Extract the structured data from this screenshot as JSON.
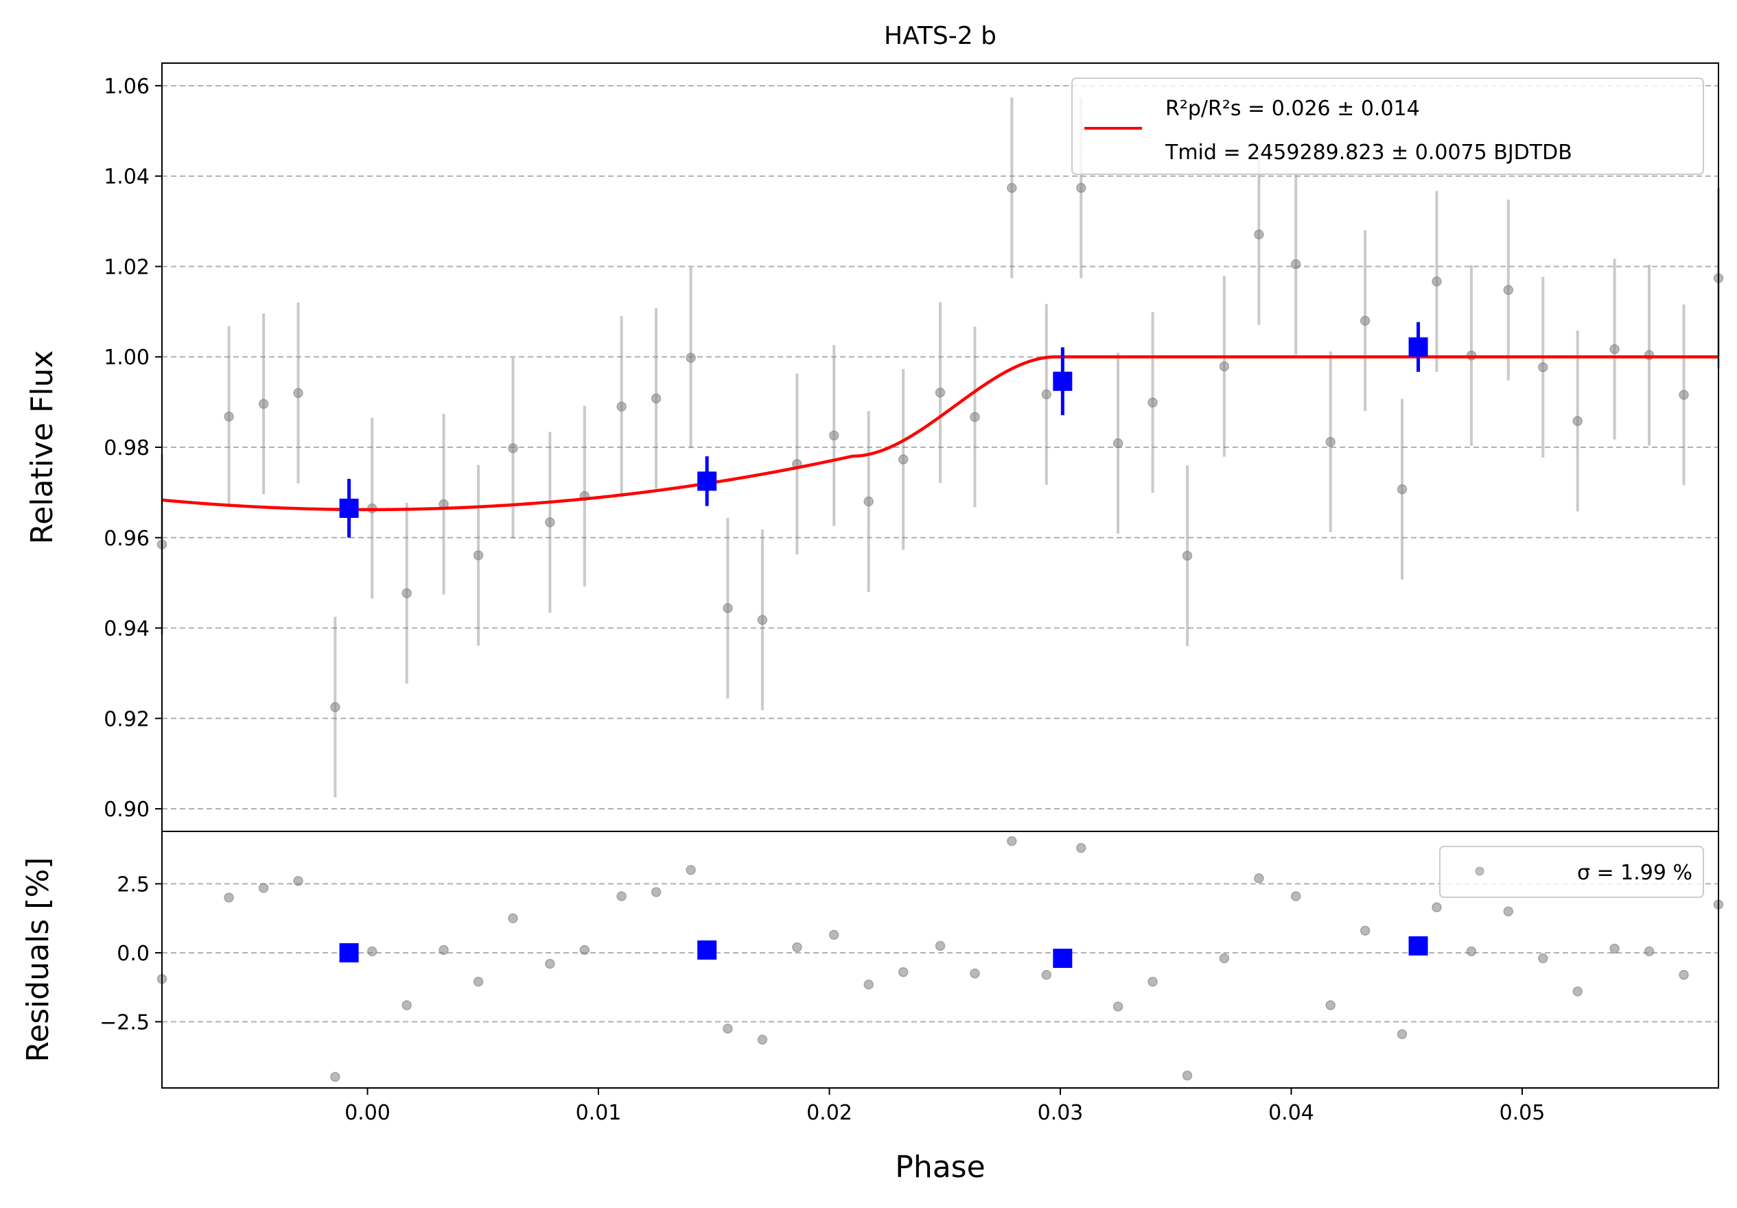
{
  "chart_data": {
    "type": "scatter",
    "title": "HATS-2 b",
    "xlabel": "Phase",
    "xlim": [
      -0.0089,
      0.0585
    ],
    "xticks": [
      0.0,
      0.01,
      0.02,
      0.03,
      0.04,
      0.05
    ],
    "xtick_labels": [
      "0.00",
      "0.01",
      "0.02",
      "0.03",
      "0.04",
      "0.05"
    ],
    "top_panel": {
      "ylabel": "Relative Flux",
      "ylim": [
        0.895,
        1.065
      ],
      "yticks": [
        0.9,
        0.92,
        0.94,
        0.96,
        0.98,
        1.0,
        1.02,
        1.04,
        1.06
      ],
      "ytick_labels": [
        "0.90",
        "0.92",
        "0.94",
        "0.96",
        "0.98",
        "1.00",
        "1.02",
        "1.04",
        "1.06"
      ],
      "grid": "horizontal dashed",
      "legend_placement": "upper-right",
      "legend": {
        "model_line1": "R²p/R²s = 0.026 ± 0.014",
        "model_line2": "Tmid = 2459289.823 ± 0.0075 BJDTDB"
      },
      "data_points": {
        "x": [
          -0.0089,
          -0.006,
          -0.0045,
          -0.003,
          -0.0014,
          0.0002,
          0.0017,
          0.0033,
          0.0048,
          0.0063,
          0.0079,
          0.0094,
          0.011,
          0.0125,
          0.014,
          0.0156,
          0.0171,
          0.0186,
          0.0202,
          0.0217,
          0.0232,
          0.0248,
          0.0263,
          0.0279,
          0.0294,
          0.0309,
          0.0325,
          0.034,
          0.0355,
          0.0371,
          0.0386,
          0.0402,
          0.0417,
          0.0432,
          0.0448,
          0.0463,
          0.0478,
          0.0494,
          0.0509,
          0.0524,
          0.054,
          0.0555,
          0.057,
          0.0585
        ],
        "y": [
          0.9585,
          0.9868,
          0.9896,
          0.992,
          0.9225,
          0.9665,
          0.9477,
          0.9674,
          0.9561,
          0.9798,
          0.9634,
          0.9692,
          0.989,
          0.9908,
          0.9998,
          0.9444,
          0.9418,
          0.9763,
          0.9826,
          0.968,
          0.9773,
          0.9921,
          0.9867,
          1.0374,
          0.9917,
          1.0374,
          0.9809,
          0.9899,
          0.956,
          0.9979,
          1.0271,
          1.0205,
          0.9812,
          1.008,
          0.9707,
          1.0167,
          1.0003,
          1.0148,
          0.9977,
          0.9858,
          1.0017,
          1.0004,
          0.9916,
          1.0174
        ],
        "yerr": 0.02,
        "color": "#808080"
      },
      "binned_points": {
        "x": [
          -0.0008,
          0.0147,
          0.0301,
          0.0455
        ],
        "y": [
          0.9665,
          0.9725,
          0.9946,
          1.0022
        ],
        "yerr": [
          0.0065,
          0.0055,
          0.0075,
          0.0055
        ],
        "color": "#0000ff"
      },
      "model": {
        "color": "#ff0000",
        "baseline": 1.0,
        "depth": 0.0338,
        "t_center": 0.0,
        "t_full": 0.021,
        "t_edge": 0.0298
      }
    },
    "bottom_panel": {
      "ylabel": "Residuals [%]",
      "ylim": [
        -4.9,
        4.4
      ],
      "yticks": [
        -2.5,
        0.0,
        2.5
      ],
      "ytick_labels": [
        "−2.5",
        "0.0",
        "2.5"
      ],
      "grid": "horizontal dashed",
      "legend_placement": "upper-right",
      "legend": {
        "label": "σ = 1.99 %"
      },
      "residuals": {
        "x": [
          -0.0089,
          -0.006,
          -0.0045,
          -0.003,
          -0.0014,
          0.0002,
          0.0017,
          0.0033,
          0.0048,
          0.0063,
          0.0079,
          0.0094,
          0.011,
          0.0125,
          0.014,
          0.0156,
          0.0171,
          0.0186,
          0.0202,
          0.0217,
          0.0232,
          0.0248,
          0.0263,
          0.0279,
          0.0294,
          0.0309,
          0.0325,
          0.034,
          0.0355,
          0.0371,
          0.0386,
          0.0402,
          0.0417,
          0.0432,
          0.0448,
          0.0463,
          0.0478,
          0.0494,
          0.0509,
          0.0524,
          0.054,
          0.0555,
          0.057,
          0.0585
        ],
        "y": [
          -0.95,
          2.0,
          2.35,
          2.6,
          -4.5,
          0.05,
          -1.9,
          0.1,
          -1.05,
          1.25,
          -0.4,
          0.1,
          2.05,
          2.2,
          3.0,
          -2.75,
          -3.15,
          0.2,
          0.65,
          -1.15,
          -0.7,
          0.25,
          -0.75,
          4.05,
          -0.8,
          3.8,
          -1.95,
          -1.05,
          -4.45,
          -0.2,
          2.7,
          2.05,
          -1.9,
          0.8,
          -2.95,
          1.65,
          0.05,
          1.5,
          -0.2,
          -1.4,
          0.15,
          0.05,
          -0.8,
          1.75
        ]
      },
      "binned_residuals": {
        "x": [
          -0.0008,
          0.0147,
          0.0301,
          0.0455
        ],
        "y": [
          0.0,
          0.1,
          -0.2,
          0.25
        ]
      }
    }
  }
}
